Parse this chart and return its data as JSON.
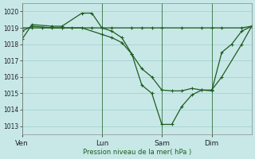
{
  "background_color": "#c8e8e8",
  "grid_color": "#a0cccc",
  "line_color": "#1e5c1e",
  "ylabel": "Pression niveau de la mer( hPa )",
  "ylim": [
    1012.5,
    1020.5
  ],
  "yticks": [
    1013,
    1014,
    1015,
    1016,
    1017,
    1018,
    1019,
    1020
  ],
  "xtick_labels": [
    "Ven",
    "Lun",
    "Sam",
    "Dim"
  ],
  "xtick_positions": [
    0,
    16,
    28,
    38
  ],
  "vline_positions": [
    0,
    16,
    28,
    38
  ],
  "xlim": [
    0,
    46
  ],
  "series1": {
    "x": [
      0,
      2,
      4,
      8,
      10,
      14,
      16,
      18,
      22,
      24,
      26,
      28,
      32,
      36,
      38,
      40,
      44,
      46
    ],
    "y": [
      1019.0,
      1019.0,
      1019.0,
      1019.0,
      1019.0,
      1019.0,
      1019.0,
      1019.0,
      1019.0,
      1019.0,
      1019.0,
      1019.0,
      1019.0,
      1019.0,
      1019.0,
      1019.0,
      1019.0,
      1019.1
    ]
  },
  "series2": {
    "x": [
      0,
      2,
      6,
      8,
      12,
      14,
      16,
      18,
      20,
      22,
      24,
      26,
      28,
      30,
      32,
      34,
      36,
      38,
      40,
      42,
      44,
      46
    ],
    "y": [
      1018.3,
      1019.2,
      1019.1,
      1019.1,
      1019.9,
      1019.9,
      1019.0,
      1018.8,
      1018.4,
      1017.4,
      1015.5,
      1015.0,
      1013.1,
      1013.1,
      1014.2,
      1014.9,
      1015.2,
      1015.15,
      1017.5,
      1018.0,
      1018.8,
      1019.1
    ]
  },
  "series3": {
    "x": [
      0,
      2,
      6,
      8,
      12,
      16,
      18,
      20,
      22,
      24,
      26,
      28,
      30,
      32,
      34,
      36,
      38,
      40,
      44,
      46
    ],
    "y": [
      1018.8,
      1019.1,
      1019.0,
      1019.0,
      1019.0,
      1018.6,
      1018.4,
      1018.1,
      1017.4,
      1016.5,
      1016.0,
      1015.2,
      1015.15,
      1015.15,
      1015.3,
      1015.2,
      1015.2,
      1016.0,
      1018.0,
      1019.1
    ]
  }
}
